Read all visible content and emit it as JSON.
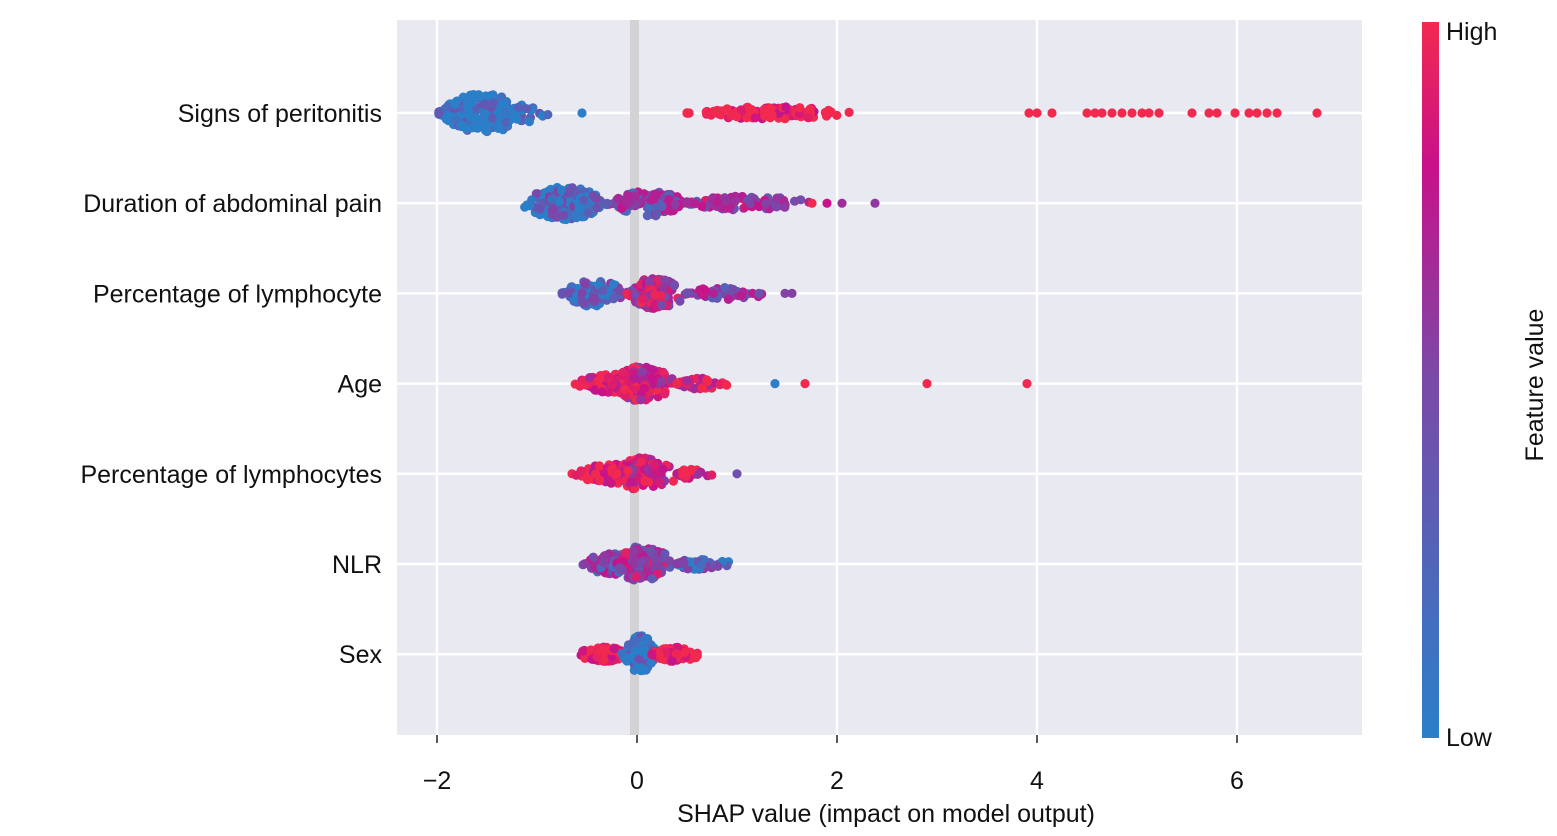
{
  "chart_data": {
    "type": "scatter",
    "subtype": "shap-beeswarm",
    "xlabel": "SHAP value (impact on model output)",
    "xlim": [
      -2.4,
      7.25
    ],
    "xticks": [
      -2,
      0,
      2,
      4,
      6
    ],
    "xtick_labels": [
      "−2",
      "0",
      "2",
      "4",
      "6"
    ],
    "grid": true,
    "colorbar": {
      "title": "Feature value",
      "high_label": "High",
      "low_label": "Low",
      "high_color": "#f2294f",
      "mid_color": "#c8118a",
      "low_color": "#2b7fc9"
    },
    "features": [
      {
        "name": "Signs of peritonitis",
        "clusters": [
          {
            "min": -1.98,
            "max": -0.8,
            "center": -1.6,
            "count": 260,
            "height": 0.42,
            "fvalue": 0.0
          },
          {
            "min": 0.5,
            "max": 2.2,
            "center": 1.3,
            "count": 110,
            "height": 0.14,
            "fvalue": 1.0
          }
        ],
        "points": [
          {
            "x": -0.55,
            "fvalue": 0.0
          },
          {
            "x": 3.92,
            "fvalue": 1.0
          },
          {
            "x": 4.0,
            "fvalue": 1.0
          },
          {
            "x": 4.15,
            "fvalue": 1.0
          },
          {
            "x": 4.5,
            "fvalue": 1.0
          },
          {
            "x": 4.58,
            "fvalue": 1.0
          },
          {
            "x": 4.65,
            "fvalue": 1.0
          },
          {
            "x": 4.75,
            "fvalue": 1.0
          },
          {
            "x": 4.85,
            "fvalue": 1.0
          },
          {
            "x": 4.95,
            "fvalue": 1.0
          },
          {
            "x": 5.05,
            "fvalue": 1.0
          },
          {
            "x": 5.12,
            "fvalue": 1.0
          },
          {
            "x": 5.22,
            "fvalue": 1.0
          },
          {
            "x": 5.55,
            "fvalue": 1.0
          },
          {
            "x": 5.72,
            "fvalue": 1.0
          },
          {
            "x": 5.8,
            "fvalue": 1.0
          },
          {
            "x": 5.98,
            "fvalue": 1.0
          },
          {
            "x": 6.12,
            "fvalue": 1.0
          },
          {
            "x": 6.2,
            "fvalue": 1.0
          },
          {
            "x": 6.3,
            "fvalue": 1.0
          },
          {
            "x": 6.4,
            "fvalue": 1.0
          },
          {
            "x": 6.8,
            "fvalue": 1.0
          }
        ]
      },
      {
        "name": "Duration of abdominal pain",
        "clusters": [
          {
            "min": -1.2,
            "max": -0.3,
            "center": -0.7,
            "count": 170,
            "height": 0.38,
            "fvalue": 0.05
          },
          {
            "min": -0.3,
            "max": 0.55,
            "center": 0.15,
            "count": 130,
            "height": 0.28,
            "fvalue": 0.4
          },
          {
            "min": 0.5,
            "max": 1.9,
            "center": 1.0,
            "count": 90,
            "height": 0.16,
            "fvalue": 0.55
          }
        ],
        "points": [
          {
            "x": 1.75,
            "fvalue": 1.0
          },
          {
            "x": 1.9,
            "fvalue": 0.7
          },
          {
            "x": 2.05,
            "fvalue": 0.5
          },
          {
            "x": 2.38,
            "fvalue": 0.45
          }
        ]
      },
      {
        "name": "Percentage of lymphocyte",
        "clusters": [
          {
            "min": -0.75,
            "max": -0.05,
            "center": -0.45,
            "count": 120,
            "height": 0.3,
            "fvalue": 0.1
          },
          {
            "min": -0.1,
            "max": 0.55,
            "center": 0.15,
            "count": 150,
            "height": 0.34,
            "fvalue": 0.65
          },
          {
            "min": 0.5,
            "max": 1.5,
            "center": 0.8,
            "count": 60,
            "height": 0.14,
            "fvalue": 0.45
          }
        ],
        "points": [
          {
            "x": 1.22,
            "fvalue": 0.3
          },
          {
            "x": 1.48,
            "fvalue": 0.4
          },
          {
            "x": 1.55,
            "fvalue": 0.4
          }
        ]
      },
      {
        "name": "Age",
        "clusters": [
          {
            "min": -0.65,
            "max": 0.1,
            "center": -0.2,
            "count": 130,
            "height": 0.22,
            "fvalue": 0.9
          },
          {
            "min": -0.25,
            "max": 0.45,
            "center": 0.0,
            "count": 160,
            "height": 0.38,
            "fvalue": 0.7
          },
          {
            "min": 0.4,
            "max": 1.15,
            "center": 0.6,
            "count": 60,
            "height": 0.12,
            "fvalue": 0.75
          }
        ],
        "points": [
          {
            "x": 1.38,
            "fvalue": 0.0
          },
          {
            "x": 1.68,
            "fvalue": 1.0
          },
          {
            "x": 2.9,
            "fvalue": 1.0
          },
          {
            "x": 3.9,
            "fvalue": 1.0
          }
        ]
      },
      {
        "name": "Percentage of lymphocytes",
        "clusters": [
          {
            "min": -0.65,
            "max": 0.05,
            "center": -0.25,
            "count": 130,
            "height": 0.22,
            "fvalue": 0.95
          },
          {
            "min": -0.2,
            "max": 0.5,
            "center": 0.0,
            "count": 150,
            "height": 0.36,
            "fvalue": 0.75
          },
          {
            "min": 0.4,
            "max": 0.85,
            "center": 0.5,
            "count": 40,
            "height": 0.1,
            "fvalue": 0.8
          }
        ],
        "points": [
          {
            "x": 1.0,
            "fvalue": 0.3
          }
        ]
      },
      {
        "name": "NLR",
        "clusters": [
          {
            "min": -0.6,
            "max": 0.05,
            "center": -0.2,
            "count": 110,
            "height": 0.24,
            "fvalue": 0.4
          },
          {
            "min": -0.2,
            "max": 0.45,
            "center": 0.0,
            "count": 150,
            "height": 0.38,
            "fvalue": 0.55
          },
          {
            "min": 0.4,
            "max": 1.05,
            "center": 0.55,
            "count": 60,
            "height": 0.12,
            "fvalue": 0.15
          }
        ],
        "points": []
      },
      {
        "name": "Sex",
        "clusters": [
          {
            "min": -0.65,
            "max": -0.1,
            "center": -0.3,
            "count": 140,
            "height": 0.16,
            "fvalue": 1.0
          },
          {
            "min": -0.15,
            "max": 0.2,
            "center": 0.05,
            "count": 150,
            "height": 0.42,
            "fvalue": 0.0
          },
          {
            "min": 0.15,
            "max": 0.72,
            "center": 0.35,
            "count": 110,
            "height": 0.16,
            "fvalue": 1.0
          }
        ],
        "points": []
      }
    ]
  }
}
